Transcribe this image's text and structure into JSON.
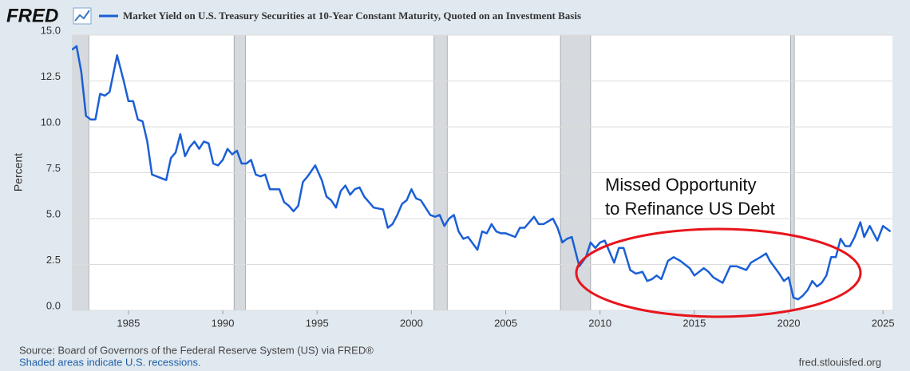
{
  "chart_data": {
    "type": "line",
    "brand": "FRED",
    "ylabel": "Percent",
    "annotation": [
      "Missed Opportunity",
      "to Refinance US Debt"
    ],
    "source": "Source: Board of Governors of the Federal Reserve System (US) via FRED®",
    "note": "Shaded areas indicate U.S. recessions.",
    "site": "fred.stlouisfed.org",
    "xlim": [
      1982,
      2025.5
    ],
    "xticks": [
      1985,
      1990,
      1995,
      2000,
      2005,
      2010,
      2015,
      2020,
      2025
    ],
    "ylim": [
      0,
      15
    ],
    "yticks": [
      {
        "value": 0,
        "label": "0.0"
      },
      2.5,
      {
        "value": 5,
        "label": "5.0"
      },
      7.5,
      {
        "value": 10,
        "label": "10.0"
      },
      12.5,
      {
        "value": 15,
        "label": "15.0"
      }
    ],
    "grid": true,
    "recessions": [
      [
        1981.5,
        1982.9
      ],
      [
        1990.6,
        1991.2
      ],
      [
        2001.2,
        2001.9
      ],
      [
        2007.9,
        2009.5
      ],
      [
        2020.1,
        2020.3
      ]
    ],
    "x": [
      1982.0,
      1982.25,
      1982.5,
      1982.75,
      1983.0,
      1983.25,
      1983.5,
      1983.75,
      1984.0,
      1984.4,
      1984.75,
      1985.0,
      1985.25,
      1985.5,
      1985.75,
      1986.0,
      1986.25,
      1986.5,
      1986.75,
      1987.0,
      1987.25,
      1987.5,
      1987.75,
      1988.0,
      1988.25,
      1988.5,
      1988.75,
      1989.0,
      1989.25,
      1989.5,
      1989.75,
      1990.0,
      1990.25,
      1990.5,
      1990.75,
      1991.0,
      1991.25,
      1991.5,
      1991.75,
      1992.0,
      1992.25,
      1992.5,
      1992.75,
      1993.0,
      1993.25,
      1993.5,
      1993.75,
      1994.0,
      1994.25,
      1994.5,
      1994.9,
      1995.25,
      1995.5,
      1995.75,
      1996.0,
      1996.25,
      1996.5,
      1996.75,
      1997.0,
      1997.25,
      1997.5,
      1997.75,
      1998.0,
      1998.5,
      1998.75,
      1999.0,
      1999.25,
      1999.5,
      1999.75,
      2000.0,
      2000.25,
      2000.5,
      2000.75,
      2001.0,
      2001.25,
      2001.5,
      2001.75,
      2002.0,
      2002.25,
      2002.5,
      2002.75,
      2003.0,
      2003.5,
      2003.75,
      2004.0,
      2004.25,
      2004.5,
      2004.75,
      2005.0,
      2005.5,
      2005.75,
      2006.0,
      2006.5,
      2006.75,
      2007.0,
      2007.5,
      2007.75,
      2008.0,
      2008.25,
      2008.5,
      2008.9,
      2009.25,
      2009.5,
      2009.75,
      2010.0,
      2010.25,
      2010.75,
      2011.0,
      2011.25,
      2011.6,
      2011.9,
      2012.25,
      2012.5,
      2012.75,
      2013.0,
      2013.25,
      2013.6,
      2013.9,
      2014.25,
      2014.75,
      2015.0,
      2015.5,
      2015.75,
      2016.0,
      2016.5,
      2016.9,
      2017.25,
      2017.75,
      2018.0,
      2018.5,
      2018.8,
      2019.0,
      2019.5,
      2019.75,
      2020.0,
      2020.25,
      2020.5,
      2020.75,
      2021.0,
      2021.25,
      2021.5,
      2021.75,
      2022.0,
      2022.25,
      2022.5,
      2022.75,
      2023.0,
      2023.25,
      2023.5,
      2023.8,
      2024.0,
      2024.3,
      2024.7,
      2025.0,
      2025.4
    ],
    "series": [
      {
        "name": "Market Yield on U.S. Treasury Securities at 10-Year Constant Maturity, Quoted on an Investment Basis",
        "color": "#1a5fd6",
        "values": [
          14.2,
          14.4,
          13.0,
          10.6,
          10.4,
          10.4,
          11.8,
          11.7,
          11.9,
          13.9,
          12.5,
          11.4,
          11.4,
          10.4,
          10.3,
          9.2,
          7.4,
          7.3,
          7.2,
          7.1,
          8.3,
          8.6,
          9.6,
          8.4,
          8.9,
          9.2,
          8.8,
          9.2,
          9.1,
          8.0,
          7.9,
          8.2,
          8.8,
          8.5,
          8.7,
          8.0,
          8.0,
          8.2,
          7.4,
          7.3,
          7.4,
          6.6,
          6.6,
          6.6,
          5.9,
          5.7,
          5.4,
          5.7,
          7.0,
          7.3,
          7.9,
          7.1,
          6.2,
          6.0,
          5.6,
          6.5,
          6.8,
          6.3,
          6.6,
          6.7,
          6.2,
          5.9,
          5.6,
          5.5,
          4.5,
          4.7,
          5.2,
          5.8,
          6.0,
          6.6,
          6.1,
          6.0,
          5.6,
          5.2,
          5.1,
          5.2,
          4.6,
          5.0,
          5.2,
          4.3,
          3.9,
          4.0,
          3.3,
          4.3,
          4.2,
          4.7,
          4.3,
          4.2,
          4.2,
          4.0,
          4.5,
          4.5,
          5.1,
          4.7,
          4.7,
          5.0,
          4.5,
          3.7,
          3.9,
          4.0,
          2.4,
          2.9,
          3.7,
          3.4,
          3.7,
          3.8,
          2.6,
          3.4,
          3.4,
          2.2,
          2.0,
          2.1,
          1.6,
          1.7,
          1.9,
          1.7,
          2.7,
          2.9,
          2.7,
          2.3,
          1.9,
          2.3,
          2.1,
          1.8,
          1.5,
          2.4,
          2.4,
          2.2,
          2.6,
          2.9,
          3.1,
          2.7,
          2.0,
          1.6,
          1.8,
          0.7,
          0.6,
          0.8,
          1.1,
          1.6,
          1.3,
          1.5,
          1.9,
          2.9,
          2.9,
          3.9,
          3.5,
          3.5,
          4.0,
          4.8,
          4.0,
          4.6,
          3.8,
          4.6,
          4.3
        ]
      }
    ]
  }
}
